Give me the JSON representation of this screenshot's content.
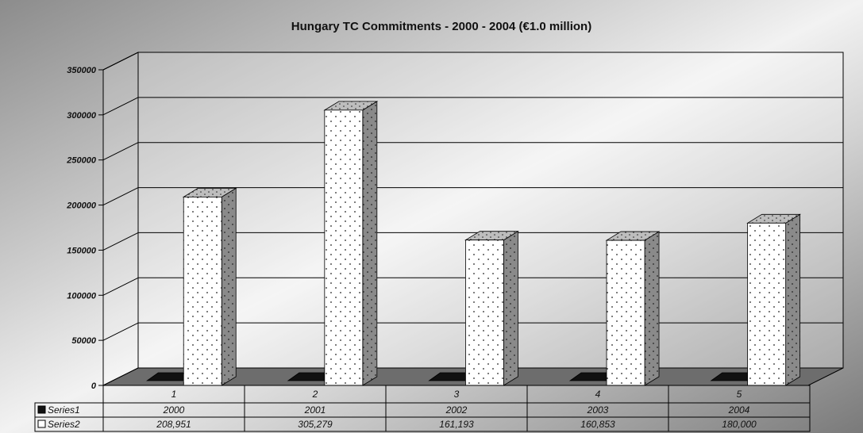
{
  "chart_data": {
    "type": "bar",
    "title": "Hungary TC Commitments - 2000 - 2004 (€1.0 million)",
    "categories": [
      "1",
      "2",
      "3",
      "4",
      "5"
    ],
    "series": [
      {
        "name": "Series1",
        "values": [
          2000,
          2001,
          2002,
          2003,
          2004
        ],
        "color": "#111111"
      },
      {
        "name": "Series2",
        "values": [
          208951,
          305279,
          161193,
          160853,
          180000
        ],
        "color": "#ffffff"
      }
    ],
    "data_table": {
      "rows": [
        {
          "label": "Series1",
          "cells": [
            "2000",
            "2001",
            "2002",
            "2003",
            "2004"
          ]
        },
        {
          "label": "Series2",
          "cells": [
            "208,951",
            "305,279",
            "161,193",
            "160,853",
            "180,000"
          ]
        }
      ]
    },
    "ylim": [
      0,
      350000
    ],
    "yticks": [
      "0",
      "50000",
      "100000",
      "150000",
      "200000",
      "250000",
      "300000",
      "350000"
    ],
    "xlabel": "",
    "ylabel": "",
    "grid": true,
    "legend": "data-table",
    "style": "3d-bar"
  }
}
